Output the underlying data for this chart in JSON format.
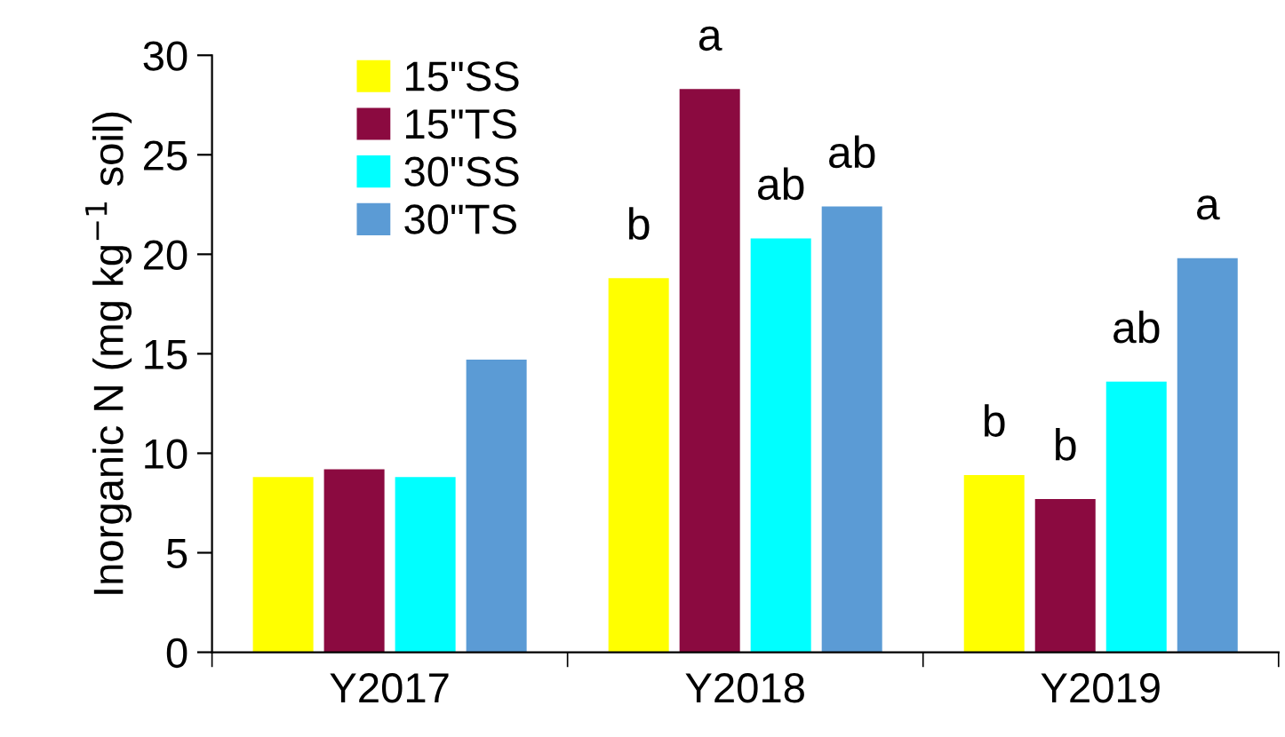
{
  "chart_data": {
    "type": "bar",
    "ylabel": "Inorganic N (mg kg$^{−1}$ soil)",
    "categories": [
      "Y2017",
      "Y2018",
      "Y2019"
    ],
    "series": [
      {
        "name": "15\"SS",
        "color": "#ffff00",
        "values": [
          8.8,
          18.8,
          8.9
        ],
        "value_labels": [
          null,
          "b",
          "b"
        ]
      },
      {
        "name": "15\"TS",
        "color": "#8b0a40",
        "values": [
          9.2,
          28.3,
          7.7
        ],
        "value_labels": [
          null,
          "a",
          "b"
        ]
      },
      {
        "name": "30\"SS",
        "color": "#00ffff",
        "values": [
          8.8,
          20.8,
          13.6
        ],
        "value_labels": [
          null,
          "ab",
          "ab"
        ]
      },
      {
        "name": "30\"TS",
        "color": "#5b9bd5",
        "values": [
          14.7,
          22.4,
          19.8
        ],
        "value_labels": [
          null,
          "ab",
          "a"
        ]
      }
    ],
    "ylim": [
      0,
      30
    ],
    "yticks": [
      0,
      5,
      10,
      15,
      20,
      25,
      30
    ],
    "grid": false,
    "legend": "top left"
  }
}
